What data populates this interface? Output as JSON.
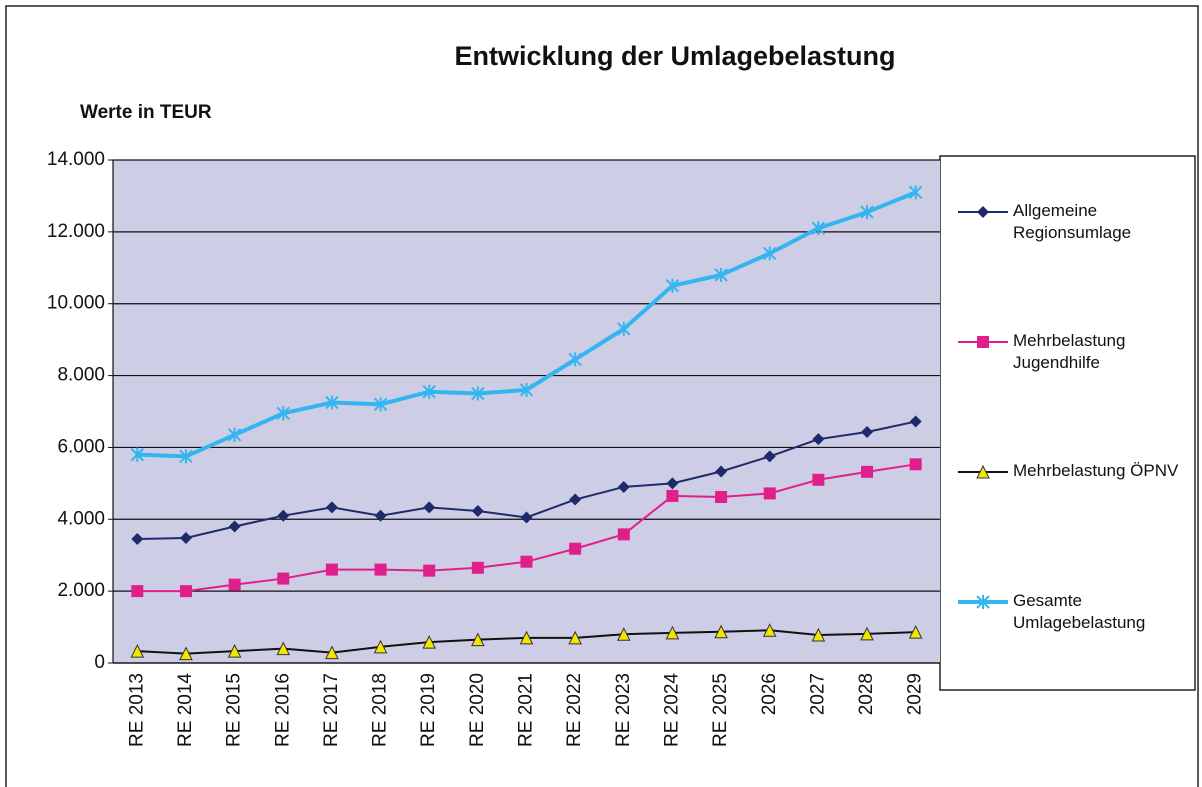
{
  "chart_data": {
    "type": "line",
    "title": "Entwicklung der Umlagebelastung",
    "subtitle": "Werte in TEUR",
    "categories": [
      "RE 2013",
      "RE 2014",
      "RE 2015",
      "RE 2016",
      "RE 2017",
      "RE 2018",
      "RE 2019",
      "RE 2020",
      "RE 2021",
      "RE 2022",
      "RE 2023",
      "RE 2024",
      "RE 2025",
      "2026",
      "2027",
      "2028",
      "2029"
    ],
    "series": [
      {
        "name": "Allgemeine Regionsumlage",
        "color": "#1f2a6b",
        "marker": "diamond",
        "marker_color": "#1f2a6b",
        "width": 2,
        "values": [
          3450,
          3480,
          3800,
          4100,
          4330,
          4100,
          4330,
          4230,
          4050,
          4550,
          4900,
          5000,
          5330,
          5750,
          6230,
          6430,
          6720
        ]
      },
      {
        "name": "Mehrbelastung Jugendhilfe",
        "color": "#e0208a",
        "marker": "square",
        "marker_color": "#e0208a",
        "width": 2,
        "values": [
          2000,
          2000,
          2180,
          2350,
          2600,
          2600,
          2570,
          2650,
          2820,
          3180,
          3580,
          4650,
          4620,
          4720,
          5100,
          5320,
          5530
        ]
      },
      {
        "name": "Mehrbelastung ÖPNV",
        "color": "#111111",
        "marker": "triangle",
        "marker_color": "#f2e600",
        "width": 2,
        "values": [
          330,
          260,
          330,
          400,
          290,
          450,
          580,
          650,
          700,
          700,
          800,
          840,
          870,
          910,
          780,
          810,
          860
        ]
      },
      {
        "name": "Gesamte Umlagebelastung",
        "color": "#33b5f0",
        "marker": "star",
        "marker_color": "#33b5f0",
        "width": 4,
        "values": [
          5800,
          5750,
          6350,
          6950,
          7250,
          7200,
          7550,
          7500,
          7600,
          8450,
          9300,
          10500,
          10800,
          11400,
          12100,
          12550,
          13100
        ]
      }
    ],
    "ylim": [
      0,
      14000
    ],
    "yticks": [
      0,
      {
        "value": 2000,
        "label": "2.000"
      },
      {
        "value": 4000,
        "label": "4.000"
      },
      {
        "value": 6000,
        "label": "6.000"
      },
      {
        "value": 8000,
        "label": "8.000"
      },
      {
        "value": 10000,
        "label": "10.000"
      },
      {
        "value": 12000,
        "label": "12.000"
      },
      {
        "value": 14000,
        "label": "14.000"
      }
    ],
    "grid": true,
    "legend": "right",
    "plot_background": "#cdcde6"
  }
}
